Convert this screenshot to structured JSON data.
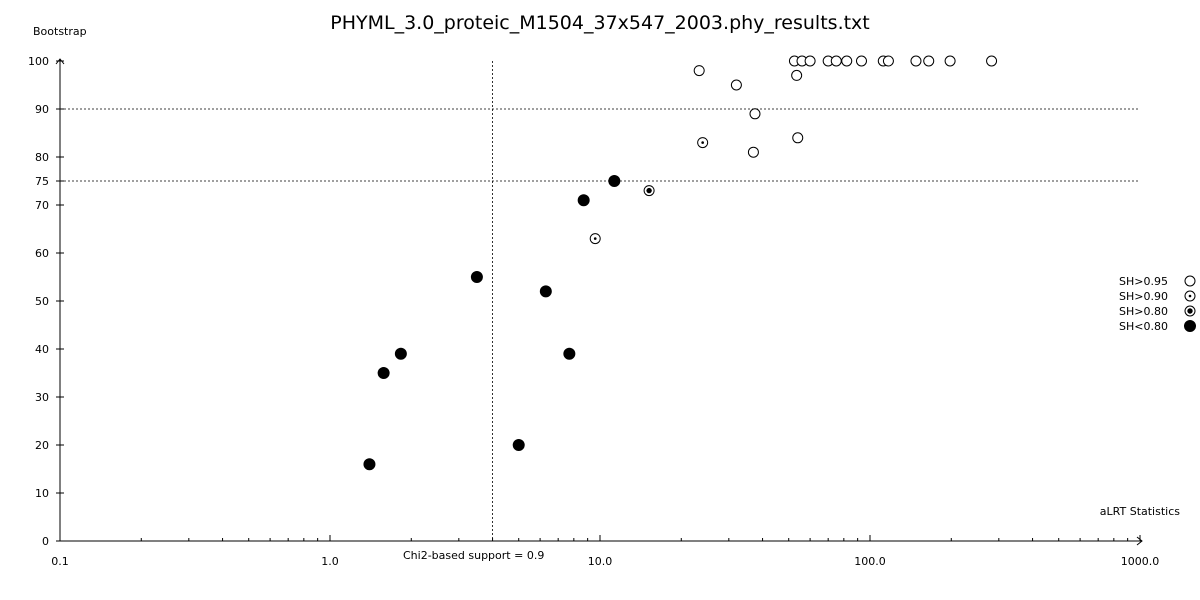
{
  "chart_data": {
    "type": "scatter",
    "title": "PHYML_3.0_proteic_M1504_37x547_2003.phy_results.txt",
    "xlabel": "aLRT Statistics",
    "ylabel": "Bootstrap",
    "x_scale": "log",
    "xlim": [
      0.1,
      1000.0
    ],
    "ylim": [
      0,
      100
    ],
    "x_ticks": [
      "0.1",
      "1.0",
      "10.0",
      "100.0",
      "1000.0"
    ],
    "y_ticks": [
      "0",
      "10",
      "20",
      "30",
      "40",
      "50",
      "60",
      "70",
      "75",
      "80",
      "90",
      "100"
    ],
    "reference_lines": {
      "vertical": {
        "x": 4.0,
        "label": "Chi2-based support = 0.9"
      },
      "horizontal": [
        90,
        75
      ]
    },
    "grid": false,
    "legend_position": "right",
    "series": [
      {
        "name": "SH>0.95",
        "marker": "open-circle",
        "points": [
          [
            23.3,
            98
          ],
          [
            32.0,
            95
          ],
          [
            37.5,
            89
          ],
          [
            37.0,
            81
          ],
          [
            54.0,
            84
          ],
          [
            53.5,
            97
          ],
          [
            52.5,
            100
          ],
          [
            56.0,
            100
          ],
          [
            60.0,
            100
          ],
          [
            70.0,
            100
          ],
          [
            75.0,
            100
          ],
          [
            82.0,
            100
          ],
          [
            93.0,
            100
          ],
          [
            112.0,
            100
          ],
          [
            117.0,
            100
          ],
          [
            148.0,
            100
          ],
          [
            165.0,
            100
          ],
          [
            198.0,
            100
          ],
          [
            282.0,
            100
          ]
        ]
      },
      {
        "name": "SH>0.90",
        "marker": "dotted-circle",
        "points": [
          [
            24.0,
            83
          ],
          [
            9.6,
            63
          ]
        ]
      },
      {
        "name": "SH>0.80",
        "marker": "bullseye-circle",
        "points": [
          [
            15.2,
            73
          ]
        ]
      },
      {
        "name": "SH<0.80",
        "marker": "filled-circle",
        "points": [
          [
            11.3,
            75
          ],
          [
            8.7,
            71
          ],
          [
            3.5,
            55
          ],
          [
            6.3,
            52
          ],
          [
            7.7,
            39
          ],
          [
            1.83,
            39
          ],
          [
            1.58,
            35
          ],
          [
            1.4,
            16
          ],
          [
            5.0,
            20
          ]
        ]
      }
    ]
  }
}
